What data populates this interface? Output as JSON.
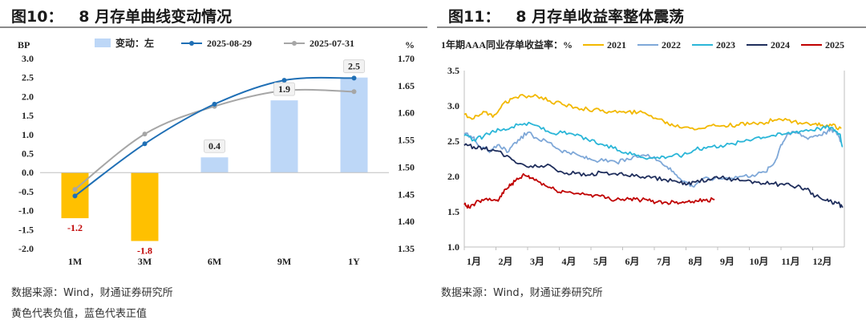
{
  "left": {
    "title": "图10：   8 月存单曲线变动情况",
    "source_note": "数据来源：Wind，财通证券研究所",
    "color_note": "黄色代表负值，蓝色代表正值",
    "colors": {
      "neg_bar": "#FFC000",
      "pos_bar": "#BDD7F7",
      "line_a": "#1F6FB5",
      "line_b": "#A6A6A6",
      "neg_label": "#C00000"
    }
  },
  "right": {
    "title": "图11：   8 月存单收益率整体震荡",
    "source_note": "数据来源：Wind，财通证券研究所",
    "colors": {
      "s2021": "#F2B800",
      "s2022": "#7FA8D8",
      "s2023": "#2BB6D8",
      "s2024": "#1F2E5C",
      "s2025": "#C00000"
    }
  },
  "chart_data": [
    {
      "type": "bar",
      "categories": [
        "1M",
        "3M",
        "6M",
        "9M",
        "1Y"
      ],
      "bar_series_name": "变动：左",
      "values": [
        -1.2,
        -1.8,
        0.4,
        1.9,
        2.5
      ],
      "value_labels": [
        "-1.2",
        "-1.8",
        "0.4",
        "1.9",
        "2.5"
      ],
      "left_unit": "BP",
      "right_unit": "%",
      "left_ticks": [
        "3.0",
        "2.5",
        "2.0",
        "1.5",
        "1.0",
        "0.5",
        "0.0",
        "-0.5",
        "-1.0",
        "-1.5",
        "-2.0"
      ],
      "right_ticks": [
        "1.70",
        "1.65",
        "1.60",
        "1.55",
        "1.50",
        "1.45",
        "1.40",
        "1.35"
      ],
      "ylim_left": [
        -2.0,
        3.0
      ],
      "ylim_right": [
        1.35,
        1.7
      ],
      "line_series": [
        {
          "name": "2025-08-29",
          "values": [
            1.447,
            1.543,
            1.616,
            1.66,
            1.664
          ]
        },
        {
          "name": "2025-07-31",
          "values": [
            1.459,
            1.561,
            1.612,
            1.641,
            1.639
          ]
        }
      ],
      "legend": "top"
    },
    {
      "type": "line",
      "legend_title": "1年期AAA同业存单收益率：%",
      "x_ticks": [
        "1月",
        "2月",
        "3月",
        "4月",
        "5月",
        "6月",
        "7月",
        "8月",
        "9月",
        "10月",
        "11月",
        "12月"
      ],
      "y_ticks": [
        "3.5",
        "3.0",
        "2.5",
        "2.0",
        "1.5",
        "1.0"
      ],
      "ylim": [
        1.0,
        3.5
      ],
      "x_unit": "month-of-year (1.0 = Jan 1)",
      "series": [
        {
          "name": "2021",
          "points": [
            [
              1.0,
              2.88
            ],
            [
              1.3,
              2.82
            ],
            [
              1.6,
              2.92
            ],
            [
              1.9,
              2.84
            ],
            [
              2.2,
              3.02
            ],
            [
              2.5,
              3.1
            ],
            [
              2.9,
              3.14
            ],
            [
              3.3,
              3.14
            ],
            [
              3.7,
              3.07
            ],
            [
              4.1,
              3.02
            ],
            [
              4.5,
              2.98
            ],
            [
              4.9,
              2.95
            ],
            [
              5.3,
              2.93
            ],
            [
              5.7,
              2.92
            ],
            [
              6.1,
              2.9
            ],
            [
              6.5,
              2.91
            ],
            [
              6.9,
              2.86
            ],
            [
              7.3,
              2.78
            ],
            [
              7.6,
              2.72
            ],
            [
              8.0,
              2.7
            ],
            [
              8.4,
              2.68
            ],
            [
              8.8,
              2.72
            ],
            [
              9.2,
              2.72
            ],
            [
              9.6,
              2.73
            ],
            [
              10.0,
              2.74
            ],
            [
              10.4,
              2.76
            ],
            [
              10.8,
              2.8
            ],
            [
              11.2,
              2.8
            ],
            [
              11.6,
              2.76
            ],
            [
              12.0,
              2.74
            ],
            [
              12.3,
              2.73
            ],
            [
              12.6,
              2.72
            ],
            [
              12.9,
              2.68
            ]
          ]
        },
        {
          "name": "2022",
          "points": [
            [
              1.0,
              2.6
            ],
            [
              1.3,
              2.56
            ],
            [
              1.5,
              2.42
            ],
            [
              1.8,
              2.34
            ],
            [
              2.1,
              2.45
            ],
            [
              2.4,
              2.35
            ],
            [
              2.7,
              2.52
            ],
            [
              3.0,
              2.62
            ],
            [
              3.3,
              2.54
            ],
            [
              3.7,
              2.48
            ],
            [
              4.0,
              2.38
            ],
            [
              4.3,
              2.34
            ],
            [
              4.7,
              2.28
            ],
            [
              5.0,
              2.24
            ],
            [
              5.4,
              2.22
            ],
            [
              5.8,
              2.2
            ],
            [
              6.2,
              2.24
            ],
            [
              6.6,
              2.3
            ],
            [
              7.0,
              2.28
            ],
            [
              7.4,
              2.14
            ],
            [
              7.7,
              2.02
            ],
            [
              8.0,
              1.92
            ],
            [
              8.2,
              1.86
            ],
            [
              8.5,
              1.96
            ],
            [
              8.9,
              1.97
            ],
            [
              9.3,
              1.98
            ],
            [
              9.7,
              2.0
            ],
            [
              10.1,
              2.02
            ],
            [
              10.5,
              2.06
            ],
            [
              10.8,
              2.2
            ],
            [
              11.0,
              2.45
            ],
            [
              11.2,
              2.6
            ],
            [
              11.5,
              2.62
            ],
            [
              11.8,
              2.55
            ],
            [
              12.1,
              2.58
            ],
            [
              12.4,
              2.62
            ],
            [
              12.6,
              2.66
            ],
            [
              12.8,
              2.6
            ],
            [
              12.9,
              2.48
            ]
          ]
        },
        {
          "name": "2023",
          "points": [
            [
              1.0,
              2.58
            ],
            [
              1.3,
              2.52
            ],
            [
              1.6,
              2.56
            ],
            [
              1.9,
              2.65
            ],
            [
              2.2,
              2.66
            ],
            [
              2.5,
              2.7
            ],
            [
              2.9,
              2.75
            ],
            [
              3.3,
              2.72
            ],
            [
              3.7,
              2.62
            ],
            [
              4.1,
              2.62
            ],
            [
              4.5,
              2.58
            ],
            [
              4.9,
              2.52
            ],
            [
              5.3,
              2.46
            ],
            [
              5.7,
              2.4
            ],
            [
              6.1,
              2.34
            ],
            [
              6.5,
              2.3
            ],
            [
              6.9,
              2.26
            ],
            [
              7.3,
              2.28
            ],
            [
              7.6,
              2.3
            ],
            [
              7.9,
              2.3
            ],
            [
              8.3,
              2.38
            ],
            [
              8.7,
              2.42
            ],
            [
              9.1,
              2.44
            ],
            [
              9.5,
              2.46
            ],
            [
              9.9,
              2.52
            ],
            [
              10.3,
              2.56
            ],
            [
              10.7,
              2.58
            ],
            [
              11.1,
              2.6
            ],
            [
              11.5,
              2.64
            ],
            [
              11.8,
              2.66
            ],
            [
              12.2,
              2.68
            ],
            [
              12.5,
              2.7
            ],
            [
              12.7,
              2.66
            ],
            [
              12.85,
              2.6
            ],
            [
              12.95,
              2.42
            ]
          ]
        },
        {
          "name": "2024",
          "points": [
            [
              1.0,
              2.44
            ],
            [
              1.3,
              2.42
            ],
            [
              1.6,
              2.4
            ],
            [
              1.9,
              2.38
            ],
            [
              2.2,
              2.32
            ],
            [
              2.5,
              2.24
            ],
            [
              2.9,
              2.16
            ],
            [
              3.3,
              2.14
            ],
            [
              3.7,
              2.16
            ],
            [
              4.1,
              2.06
            ],
            [
              4.5,
              2.04
            ],
            [
              4.9,
              2.02
            ],
            [
              5.3,
              2.06
            ],
            [
              5.7,
              2.04
            ],
            [
              6.1,
              2.02
            ],
            [
              6.5,
              2.0
            ],
            [
              6.9,
              1.98
            ],
            [
              7.3,
              1.96
            ],
            [
              7.7,
              1.93
            ],
            [
              8.0,
              1.88
            ],
            [
              8.3,
              1.92
            ],
            [
              8.7,
              1.96
            ],
            [
              9.1,
              1.98
            ],
            [
              9.5,
              1.96
            ],
            [
              9.9,
              1.94
            ],
            [
              10.3,
              1.92
            ],
            [
              10.7,
              1.9
            ],
            [
              11.1,
              1.88
            ],
            [
              11.5,
              1.86
            ],
            [
              11.8,
              1.82
            ],
            [
              12.1,
              1.72
            ],
            [
              12.4,
              1.66
            ],
            [
              12.6,
              1.64
            ],
            [
              12.8,
              1.62
            ],
            [
              12.95,
              1.56
            ]
          ]
        },
        {
          "name": "2025",
          "points": [
            [
              1.0,
              1.6
            ],
            [
              1.15,
              1.56
            ],
            [
              1.35,
              1.62
            ],
            [
              1.6,
              1.66
            ],
            [
              1.9,
              1.66
            ],
            [
              2.1,
              1.68
            ],
            [
              2.3,
              1.82
            ],
            [
              2.5,
              1.9
            ],
            [
              2.7,
              1.96
            ],
            [
              2.9,
              2.02
            ],
            [
              3.1,
              1.98
            ],
            [
              3.3,
              1.94
            ],
            [
              3.6,
              1.86
            ],
            [
              3.9,
              1.8
            ],
            [
              4.2,
              1.78
            ],
            [
              4.6,
              1.76
            ],
            [
              5.0,
              1.74
            ],
            [
              5.3,
              1.72
            ],
            [
              5.6,
              1.68
            ],
            [
              5.9,
              1.68
            ],
            [
              6.2,
              1.68
            ],
            [
              6.5,
              1.67
            ],
            [
              6.8,
              1.66
            ],
            [
              7.1,
              1.64
            ],
            [
              7.4,
              1.63
            ],
            [
              7.7,
              1.64
            ],
            [
              8.0,
              1.64
            ],
            [
              8.3,
              1.66
            ],
            [
              8.6,
              1.66
            ],
            [
              8.9,
              1.67
            ]
          ]
        }
      ]
    }
  ]
}
